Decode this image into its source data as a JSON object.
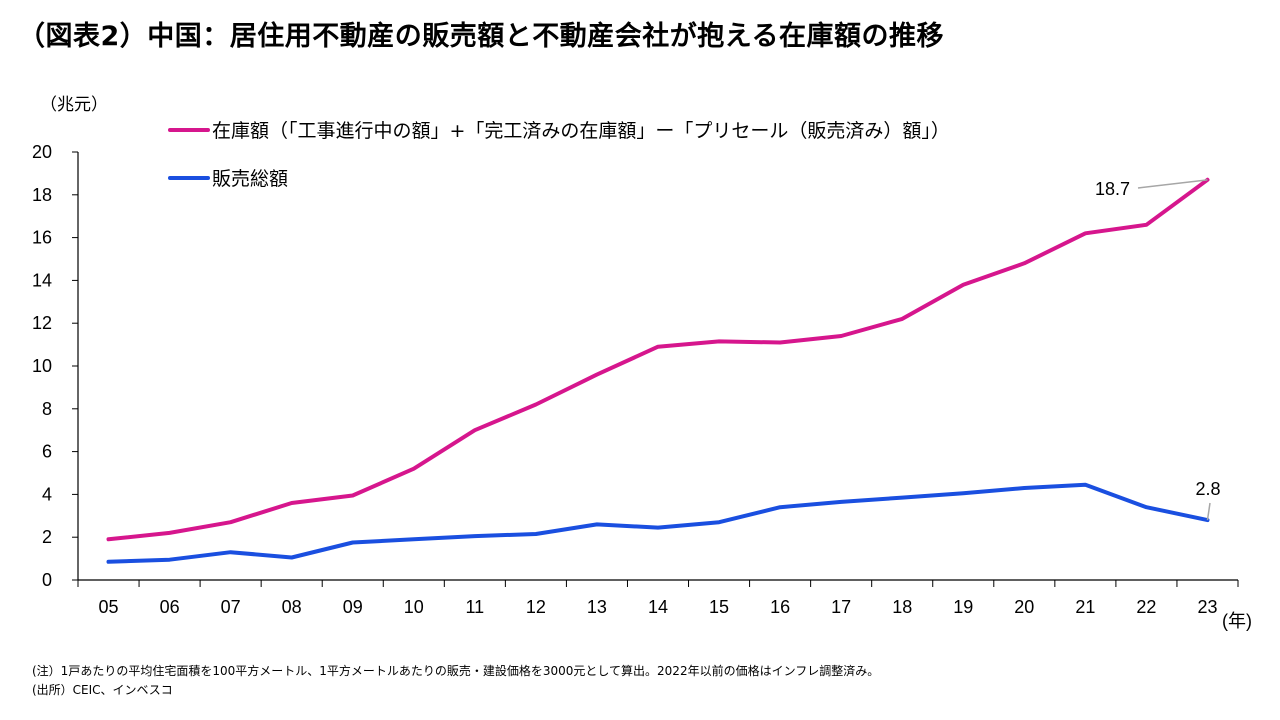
{
  "title": "（図表2）中国：居住用不動産の販売額と不動産会社が抱える在庫額の推移",
  "chart_data": {
    "type": "line",
    "title": "（図表2）中国：居住用不動産の販売額と不動産会社が抱える在庫額の推移",
    "ylabel": "（兆元）",
    "xlabel": "(年)",
    "ylim": [
      0,
      20
    ],
    "yticks": [
      "0",
      "2",
      "4",
      "6",
      "8",
      "10",
      "12",
      "14",
      "16",
      "18",
      "20"
    ],
    "categories": [
      "05",
      "06",
      "07",
      "08",
      "09",
      "10",
      "11",
      "12",
      "13",
      "14",
      "15",
      "16",
      "17",
      "18",
      "19",
      "20",
      "21",
      "22",
      "23"
    ],
    "series": [
      {
        "name": "在庫額（「工事進行中の額」+「完工済みの在庫額」ー「プリセール（販売済み）額」）",
        "color": "#d6168d",
        "values": [
          1.9,
          2.2,
          2.7,
          3.6,
          3.95,
          5.2,
          7.0,
          8.2,
          9.6,
          10.9,
          11.15,
          11.1,
          11.4,
          12.2,
          13.8,
          14.8,
          16.2,
          16.6,
          18.7
        ]
      },
      {
        "name": "販売総額",
        "color": "#1a4fe0",
        "values": [
          0.85,
          0.95,
          1.3,
          1.05,
          1.75,
          1.9,
          2.05,
          2.15,
          2.6,
          2.45,
          2.7,
          3.4,
          3.65,
          3.85,
          4.05,
          4.3,
          4.45,
          3.4,
          2.8
        ]
      }
    ],
    "annotations": [
      "18.7",
      "2.8"
    ],
    "legend_position": "top-left"
  },
  "notes": {
    "note": "(注）1戸あたりの平均住宅面積を100平方メートル、1平方メートルあたりの販売・建設価格を3000元として算出。2022年以前の価格はインフレ調整済み。",
    "source": "(出所）CEIC、インベスコ"
  }
}
